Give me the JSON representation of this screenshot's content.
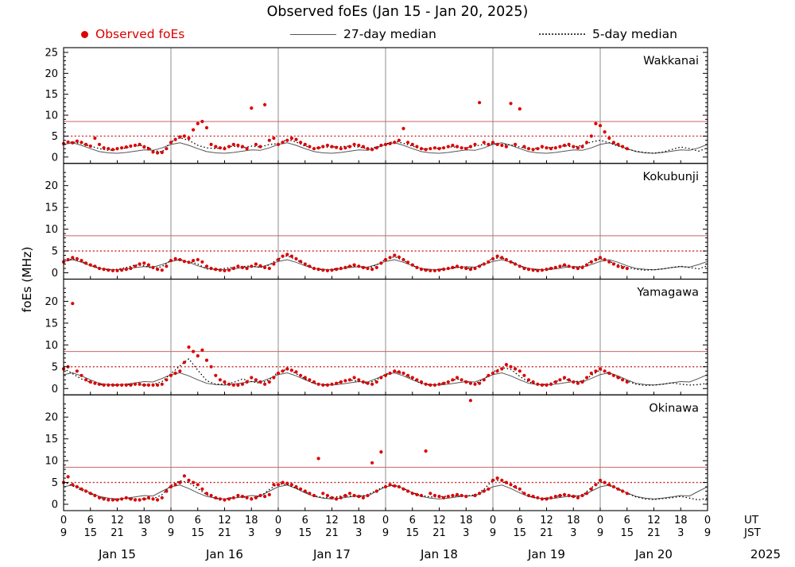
{
  "title": "Observed foEs (Jan 15 - Jan 20, 2025)",
  "ylabel": "foEs (MHz)",
  "legend": {
    "observed": "Observed foEs",
    "median27": "27-day median",
    "median5": "5-day median"
  },
  "axis_labels": {
    "ut": "UT",
    "jst": "JST",
    "year": "2025"
  },
  "colors": {
    "observed": "#dd0000",
    "median27": "#555555",
    "median5": "#000000",
    "threshold_solid": "#cc6666",
    "threshold_dotted": "#cc2222",
    "grid_day": "#808080",
    "axis": "#000000"
  },
  "chart_data": {
    "type": "scatter",
    "x_unit": "hours since Jan 15 00:00 UT",
    "x_range_hours": [
      0,
      144
    ],
    "x_major_tick_hours": 6,
    "ut_tick_cycle": [
      0,
      6,
      12,
      18
    ],
    "jst_offset_hours": 9,
    "dates": [
      "Jan 15",
      "Jan 16",
      "Jan 17",
      "Jan 18",
      "Jan 19",
      "Jan 20"
    ],
    "y_ticks_top_panel": [
      0,
      5,
      10,
      15,
      20,
      25
    ],
    "y_ticks_other_panels": [
      0,
      5,
      10,
      15,
      20
    ],
    "ylim_top_panel": [
      0,
      25
    ],
    "ylim_other_panels": [
      0,
      24
    ],
    "thresholds": {
      "solid_red": 8.5,
      "dotted_red": 5.0
    },
    "observed_step_hours": 1,
    "median_step_hours": 2,
    "stations": [
      {
        "name": "Wakkanai",
        "observed": [
          3.2,
          3.6,
          3.4,
          3.8,
          3.5,
          3.0,
          2.6,
          4.5,
          3.0,
          2.2,
          2.0,
          1.8,
          2.0,
          2.2,
          2.4,
          2.6,
          2.8,
          3.0,
          2.4,
          2.0,
          1.2,
          1.0,
          1.1,
          2.0,
          3.5,
          4.2,
          4.8,
          5.0,
          4.5,
          6.5,
          8.0,
          8.5,
          7.0,
          3.0,
          2.5,
          2.2,
          2.0,
          2.5,
          3.0,
          2.8,
          2.5,
          2.0,
          11.7,
          3.0,
          2.5,
          12.5,
          4.0,
          4.5,
          3.0,
          3.5,
          4.0,
          4.5,
          4.2,
          3.5,
          3.0,
          2.5,
          2.0,
          2.2,
          2.5,
          2.8,
          2.5,
          2.3,
          2.0,
          2.2,
          2.5,
          3.0,
          2.8,
          2.5,
          2.0,
          1.8,
          2.2,
          2.8,
          3.0,
          3.2,
          3.5,
          4.0,
          6.8,
          3.5,
          3.0,
          2.5,
          2.0,
          1.8,
          2.0,
          2.2,
          2.0,
          2.2,
          2.5,
          2.8,
          2.5,
          2.2,
          2.0,
          2.5,
          3.0,
          13.0,
          3.5,
          3.0,
          3.5,
          3.0,
          2.8,
          2.5,
          12.8,
          3.0,
          11.5,
          2.5,
          2.0,
          1.8,
          2.0,
          2.5,
          2.2,
          2.0,
          2.2,
          2.5,
          2.8,
          3.0,
          2.5,
          2.2,
          2.5,
          3.5,
          5.0,
          8.0,
          7.5,
          6.0,
          4.5,
          3.5,
          3.0,
          2.5,
          2.0
        ],
        "median27_day": [
          3.0,
          3.4,
          2.8,
          2.0,
          1.3,
          1.0,
          0.9,
          1.1,
          1.4,
          1.7,
          1.6,
          2.2
        ],
        "median5": [
          3.3,
          3.6,
          3.2,
          2.6,
          2.0,
          1.6,
          1.8,
          2.2,
          2.6,
          2.8,
          1.6,
          1.2,
          3.6,
          4.6,
          4.0,
          2.8,
          2.2,
          2.0,
          2.4,
          2.6,
          2.2,
          2.6,
          2.4,
          3.0,
          3.2,
          4.2,
          3.6,
          2.6,
          2.1,
          2.3,
          2.4,
          2.5,
          2.6,
          2.4,
          2.0,
          2.4,
          3.1,
          3.8,
          3.3,
          2.6,
          1.9,
          2.0,
          2.1,
          2.4,
          2.4,
          2.2,
          2.6,
          3.0,
          3.2,
          3.0,
          2.9,
          2.4,
          1.9,
          2.1,
          2.2,
          2.4,
          2.7,
          2.4,
          2.8,
          3.6,
          4.0,
          3.4,
          2.6,
          1.9,
          1.4,
          1.1,
          0.9,
          1.2,
          1.8,
          2.4,
          2.0,
          1.4,
          2.2
        ]
      },
      {
        "name": "Kokubunji",
        "observed": [
          2.5,
          3.0,
          3.5,
          3.2,
          2.8,
          2.2,
          1.8,
          1.5,
          1.0,
          0.8,
          0.6,
          0.5,
          0.5,
          0.6,
          0.8,
          1.0,
          1.5,
          2.0,
          2.2,
          1.8,
          1.2,
          0.8,
          0.6,
          1.5,
          2.8,
          3.2,
          3.0,
          2.6,
          2.4,
          2.8,
          3.0,
          2.5,
          1.5,
          1.0,
          0.8,
          0.6,
          0.5,
          0.6,
          1.0,
          1.5,
          1.2,
          1.0,
          1.5,
          2.0,
          1.6,
          1.2,
          1.0,
          2.0,
          3.0,
          3.8,
          4.2,
          3.8,
          3.2,
          2.6,
          2.0,
          1.5,
          1.0,
          0.8,
          0.6,
          0.5,
          0.6,
          0.8,
          1.0,
          1.2,
          1.5,
          1.8,
          1.5,
          1.2,
          1.0,
          0.8,
          1.2,
          2.2,
          3.0,
          3.5,
          4.0,
          3.6,
          3.0,
          2.4,
          1.8,
          1.2,
          0.8,
          0.6,
          0.5,
          0.5,
          0.6,
          0.8,
          1.0,
          1.2,
          1.5,
          1.2,
          1.0,
          0.8,
          1.0,
          1.5,
          2.0,
          2.5,
          3.2,
          3.8,
          3.5,
          3.0,
          2.5,
          2.0,
          1.5,
          1.0,
          0.8,
          0.6,
          0.5,
          0.6,
          0.8,
          1.0,
          1.2,
          1.5,
          1.8,
          1.5,
          1.2,
          1.0,
          1.2,
          1.8,
          2.5,
          3.0,
          3.5,
          3.0,
          2.5,
          2.0,
          1.5,
          1.2,
          1.0
        ],
        "median27_day": [
          2.6,
          3.0,
          2.4,
          1.6,
          1.0,
          0.8,
          0.7,
          0.9,
          1.2,
          1.4,
          1.3,
          1.9
        ],
        "median5": [
          2.6,
          3.2,
          2.6,
          1.8,
          1.0,
          0.7,
          0.8,
          1.2,
          1.8,
          1.6,
          1.0,
          1.4,
          2.9,
          3.0,
          2.6,
          2.0,
          0.9,
          0.7,
          1.0,
          1.3,
          1.4,
          1.6,
          1.2,
          1.8,
          3.2,
          3.9,
          3.0,
          1.9,
          1.0,
          0.7,
          0.8,
          1.1,
          1.5,
          1.4,
          1.0,
          1.8,
          3.1,
          3.7,
          2.8,
          1.7,
          0.8,
          0.6,
          0.8,
          1.1,
          1.3,
          1.0,
          1.2,
          2.2,
          3.3,
          3.4,
          2.6,
          1.6,
          0.8,
          0.7,
          0.9,
          1.2,
          1.6,
          1.3,
          1.5,
          2.6,
          3.2,
          2.6,
          1.9,
          1.2,
          0.8,
          0.6,
          0.7,
          0.9,
          1.2,
          1.5,
          1.2,
          0.9,
          1.6
        ]
      },
      {
        "name": "Yamagawa",
        "observed": [
          4.5,
          5.0,
          19.5,
          4.0,
          3.0,
          2.0,
          1.5,
          1.2,
          1.0,
          0.8,
          0.8,
          0.8,
          0.8,
          0.8,
          0.8,
          0.8,
          1.0,
          1.0,
          0.8,
          0.8,
          0.8,
          0.8,
          1.0,
          2.0,
          3.0,
          3.5,
          4.0,
          6.0,
          9.5,
          8.5,
          7.5,
          8.8,
          6.5,
          5.0,
          3.0,
          2.0,
          1.5,
          1.0,
          0.8,
          0.8,
          1.0,
          1.5,
          2.5,
          2.0,
          1.5,
          1.0,
          1.5,
          2.5,
          3.5,
          4.0,
          4.5,
          4.2,
          3.8,
          3.0,
          2.5,
          2.0,
          1.5,
          1.0,
          0.8,
          0.8,
          1.0,
          1.2,
          1.5,
          1.8,
          2.0,
          2.5,
          2.0,
          1.5,
          1.2,
          1.0,
          1.5,
          2.5,
          3.0,
          3.5,
          4.0,
          3.8,
          3.5,
          3.0,
          2.5,
          2.0,
          1.5,
          1.0,
          0.8,
          0.8,
          1.0,
          1.2,
          1.5,
          2.0,
          2.5,
          2.0,
          1.5,
          1.2,
          1.0,
          1.2,
          2.0,
          3.0,
          3.5,
          4.0,
          4.5,
          5.5,
          5.0,
          4.5,
          4.0,
          3.0,
          2.0,
          1.5,
          1.0,
          0.8,
          0.8,
          1.0,
          1.5,
          2.0,
          2.5,
          2.0,
          1.5,
          1.2,
          1.5,
          2.5,
          3.5,
          4.0,
          4.5,
          4.0,
          3.5,
          3.0,
          2.5,
          2.0,
          1.5
        ],
        "median27_day": [
          3.2,
          3.6,
          2.9,
          2.0,
          1.2,
          0.9,
          0.8,
          1.0,
          1.3,
          1.6,
          1.5,
          2.3
        ],
        "median5": [
          4.6,
          3.4,
          2.2,
          1.4,
          0.9,
          0.8,
          0.8,
          0.9,
          0.9,
          0.8,
          0.9,
          1.6,
          3.4,
          5.2,
          6.8,
          4.2,
          1.8,
          1.0,
          1.0,
          1.4,
          2.2,
          1.6,
          1.2,
          2.0,
          3.8,
          4.4,
          3.4,
          2.2,
          1.1,
          0.8,
          1.0,
          1.5,
          2.0,
          1.6,
          1.2,
          2.0,
          3.3,
          3.9,
          3.3,
          2.2,
          1.1,
          0.8,
          1.0,
          1.5,
          2.2,
          1.6,
          1.1,
          2.2,
          3.8,
          4.8,
          4.4,
          2.8,
          1.5,
          0.9,
          1.0,
          1.6,
          2.2,
          1.6,
          1.7,
          3.0,
          4.3,
          3.5,
          2.6,
          1.7,
          1.0,
          0.7,
          0.8,
          1.0,
          1.3,
          1.0,
          0.8,
          0.9,
          1.2
        ]
      },
      {
        "name": "Okinawa",
        "observed": [
          5.0,
          6.3,
          4.5,
          4.0,
          3.5,
          3.0,
          2.5,
          2.0,
          1.5,
          1.2,
          1.0,
          1.0,
          1.0,
          1.2,
          1.5,
          1.2,
          1.0,
          1.0,
          1.2,
          1.5,
          1.2,
          1.0,
          1.5,
          3.0,
          4.0,
          4.5,
          5.0,
          6.5,
          5.5,
          5.0,
          4.5,
          3.5,
          2.5,
          2.0,
          1.5,
          1.2,
          1.0,
          1.2,
          1.5,
          2.0,
          1.8,
          1.5,
          1.2,
          1.5,
          2.0,
          1.8,
          2.2,
          4.5,
          4.5,
          5.0,
          4.8,
          4.5,
          4.0,
          3.5,
          3.0,
          2.5,
          2.0,
          10.5,
          2.5,
          2.0,
          1.5,
          1.2,
          1.5,
          2.0,
          2.5,
          2.0,
          1.8,
          1.5,
          2.0,
          9.5,
          3.0,
          12.0,
          4.0,
          4.5,
          4.2,
          4.0,
          3.5,
          3.0,
          2.5,
          2.2,
          2.0,
          12.2,
          2.5,
          2.0,
          1.8,
          1.5,
          1.8,
          2.0,
          2.2,
          2.0,
          1.8,
          23.8,
          2.0,
          2.5,
          3.0,
          3.5,
          5.5,
          6.0,
          5.5,
          5.0,
          4.5,
          4.0,
          3.5,
          2.5,
          2.0,
          1.8,
          1.5,
          1.2,
          1.2,
          1.5,
          1.8,
          2.0,
          2.2,
          2.0,
          1.8,
          1.5,
          2.0,
          2.5,
          3.5,
          4.5,
          5.5,
          5.0,
          4.5,
          4.0,
          3.5,
          3.0,
          2.5
        ],
        "median27_day": [
          4.0,
          4.4,
          3.6,
          2.6,
          1.8,
          1.4,
          1.2,
          1.4,
          1.7,
          2.0,
          1.9,
          3.0
        ],
        "median5": [
          5.2,
          4.2,
          3.2,
          2.4,
          1.6,
          1.1,
          1.1,
          1.3,
          1.3,
          1.2,
          1.2,
          2.2,
          4.3,
          5.4,
          5.0,
          3.6,
          2.2,
          1.3,
          1.2,
          1.6,
          1.7,
          1.5,
          1.8,
          3.4,
          4.7,
          4.5,
          3.7,
          2.8,
          2.0,
          1.5,
          1.5,
          1.9,
          1.9,
          1.7,
          2.2,
          3.2,
          4.2,
          4.2,
          3.6,
          2.7,
          2.0,
          1.7,
          1.7,
          1.9,
          1.9,
          1.8,
          2.2,
          3.4,
          5.6,
          5.3,
          4.4,
          3.2,
          1.9,
          1.3,
          1.4,
          1.8,
          2.0,
          1.7,
          2.1,
          3.8,
          5.2,
          4.3,
          3.4,
          2.5,
          1.7,
          1.2,
          1.1,
          1.3,
          1.5,
          1.8,
          1.4,
          1.0,
          1.4
        ]
      }
    ]
  }
}
